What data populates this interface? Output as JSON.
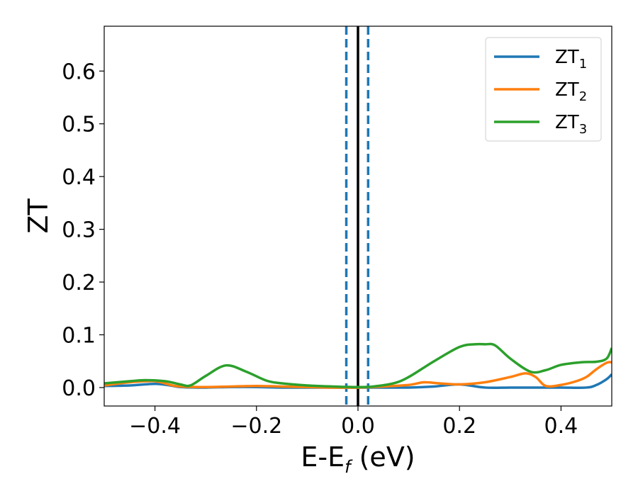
{
  "chart_data": {
    "type": "line",
    "title": "",
    "xlabel": {
      "main": "E-E",
      "sub": "f",
      "rest": " (eV)"
    },
    "ylabel": "ZT",
    "xlim": [
      -0.5,
      0.5
    ],
    "ylim": [
      -0.035,
      0.685
    ],
    "xticks": [
      -0.4,
      -0.2,
      0.0,
      0.2,
      0.4
    ],
    "xtick_labels": [
      "−0.4",
      "−0.2",
      "0.0",
      "0.2",
      "0.4"
    ],
    "yticks": [
      0.0,
      0.1,
      0.2,
      0.3,
      0.4,
      0.5,
      0.6
    ],
    "ytick_labels": [
      "0.0",
      "0.1",
      "0.2",
      "0.3",
      "0.4",
      "0.5",
      "0.6"
    ],
    "grid": false,
    "legend_position": "top-right",
    "vertical_lines": [
      {
        "x": -0.023,
        "style": "dashed",
        "color": "#1f77b4"
      },
      {
        "x": 0.0,
        "style": "solid",
        "color": "#000000"
      },
      {
        "x": 0.02,
        "style": "dashed",
        "color": "#1f77b4"
      }
    ],
    "series": [
      {
        "name": "ZT",
        "sub": "1",
        "color": "#1f77b4",
        "x": [
          -0.5,
          -0.45,
          -0.4,
          -0.37,
          -0.35,
          -0.3,
          -0.25,
          -0.2,
          -0.15,
          -0.1,
          -0.05,
          0.0,
          0.05,
          0.1,
          0.15,
          0.2,
          0.25,
          0.3,
          0.35,
          0.4,
          0.45,
          0.47,
          0.49,
          0.5
        ],
        "y": [
          0.003,
          0.004,
          0.007,
          0.004,
          0.001,
          0.0,
          0.001,
          0.001,
          0.0,
          0.0,
          0.0,
          0.0,
          0.0,
          0.0,
          0.002,
          0.006,
          0.0,
          0.0,
          0.0,
          0.0,
          0.0,
          0.005,
          0.016,
          0.025
        ]
      },
      {
        "name": "ZT",
        "sub": "2",
        "color": "#ff7f0e",
        "x": [
          -0.5,
          -0.45,
          -0.4,
          -0.37,
          -0.35,
          -0.3,
          -0.25,
          -0.2,
          -0.15,
          -0.1,
          -0.05,
          0.0,
          0.05,
          0.1,
          0.13,
          0.16,
          0.2,
          0.25,
          0.3,
          0.33,
          0.35,
          0.37,
          0.4,
          0.43,
          0.45,
          0.47,
          0.49,
          0.5
        ],
        "y": [
          0.004,
          0.01,
          0.012,
          0.005,
          0.002,
          0.001,
          0.002,
          0.003,
          0.002,
          0.001,
          0.0,
          0.0,
          0.002,
          0.005,
          0.01,
          0.008,
          0.006,
          0.01,
          0.02,
          0.027,
          0.02,
          0.003,
          0.005,
          0.012,
          0.02,
          0.035,
          0.047,
          0.048
        ]
      },
      {
        "name": "ZT",
        "sub": "3",
        "color": "#2ca02c",
        "x": [
          -0.5,
          -0.45,
          -0.42,
          -0.38,
          -0.35,
          -0.33,
          -0.3,
          -0.26,
          -0.22,
          -0.18,
          -0.15,
          -0.1,
          -0.05,
          0.0,
          0.03,
          0.07,
          0.1,
          0.15,
          0.2,
          0.23,
          0.25,
          0.27,
          0.3,
          0.34,
          0.37,
          0.4,
          0.44,
          0.47,
          0.49,
          0.5
        ],
        "y": [
          0.008,
          0.012,
          0.014,
          0.012,
          0.006,
          0.004,
          0.022,
          0.042,
          0.03,
          0.013,
          0.008,
          0.004,
          0.002,
          0.001,
          0.002,
          0.008,
          0.02,
          0.05,
          0.077,
          0.082,
          0.082,
          0.08,
          0.055,
          0.03,
          0.033,
          0.043,
          0.048,
          0.049,
          0.055,
          0.075
        ]
      }
    ]
  }
}
